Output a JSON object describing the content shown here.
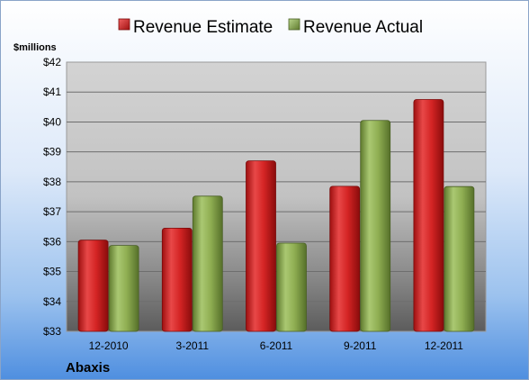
{
  "chart_data": {
    "type": "bar",
    "categories": [
      "12-2010",
      "3-2011",
      "6-2011",
      "9-2011",
      "12-2011"
    ],
    "series": [
      {
        "name": "Revenue Estimate",
        "values": [
          36.05,
          36.45,
          38.7,
          37.85,
          40.75
        ],
        "color": "#d42424"
      },
      {
        "name": "Revenue Actual",
        "values": [
          35.87,
          37.52,
          35.95,
          40.05,
          37.84
        ],
        "color": "#8fae52"
      }
    ],
    "ylabel": "$millions",
    "ylim": [
      33,
      42
    ],
    "yticks": [
      33,
      34,
      35,
      36,
      37,
      38,
      39,
      40,
      41,
      42
    ],
    "ytick_prefix": "$",
    "grid": true,
    "legend_position": "top-center",
    "caption": "Abaxis"
  }
}
